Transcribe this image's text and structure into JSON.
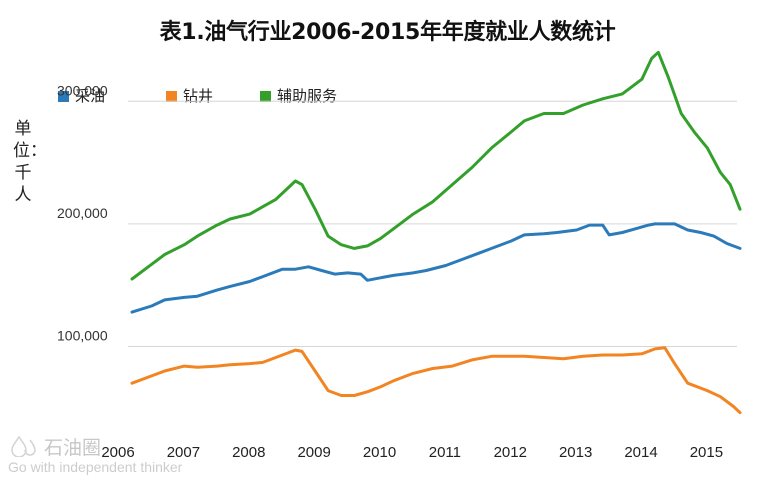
{
  "watermark": {
    "brand": "石油圈",
    "slogan": "Go with independent thinker"
  },
  "chart_data": {
    "type": "line",
    "title": "表1.油气行业2006-2015年年度就业人数统计",
    "ylabel": "单位：千人",
    "xlabel": "",
    "ylim": [
      40000,
      350000
    ],
    "yticks": [
      100000,
      200000,
      300000
    ],
    "ytick_labels": [
      "100,000",
      "200,000",
      "300,000"
    ],
    "xlim": [
      2006,
      2015.3
    ],
    "xticks": [
      2006,
      2007,
      2008,
      2009,
      2010,
      2011,
      2012,
      2013,
      2014,
      2015
    ],
    "xtick_labels": [
      "2006",
      "2007",
      "2008",
      "2009",
      "2010",
      "2011",
      "2012",
      "2013",
      "2014",
      "2015"
    ],
    "grid": "horizontal",
    "legend_position": "top-left",
    "series": [
      {
        "name": "采油",
        "color": "#2b7bba",
        "x": [
          2006.0,
          2006.3,
          2006.5,
          2006.8,
          2007.0,
          2007.3,
          2007.5,
          2007.8,
          2008.0,
          2008.3,
          2008.5,
          2008.7,
          2008.9,
          2009.1,
          2009.3,
          2009.5,
          2009.6,
          2009.8,
          2010.0,
          2010.3,
          2010.5,
          2010.8,
          2011.0,
          2011.3,
          2011.5,
          2011.8,
          2012.0,
          2012.3,
          2012.5,
          2012.8,
          2013.0,
          2013.2,
          2013.3,
          2013.5,
          2013.7,
          2013.9,
          2014.0,
          2014.3,
          2014.5,
          2014.7,
          2014.9,
          2015.1,
          2015.3
        ],
        "values": [
          128000,
          133000,
          138000,
          140000,
          141000,
          146000,
          149000,
          153000,
          157000,
          163000,
          163000,
          165000,
          162000,
          159000,
          160000,
          159000,
          154000,
          156000,
          158000,
          160000,
          162000,
          166000,
          170000,
          176000,
          180000,
          186000,
          191000,
          192000,
          193000,
          195000,
          199000,
          199000,
          191000,
          193000,
          196000,
          199000,
          200000,
          200000,
          195000,
          193000,
          190000,
          184000,
          180000
        ]
      },
      {
        "name": "钻井",
        "color": "#f28522",
        "x": [
          2006.0,
          2006.3,
          2006.5,
          2006.8,
          2007.0,
          2007.3,
          2007.5,
          2007.8,
          2008.0,
          2008.3,
          2008.5,
          2008.6,
          2008.8,
          2009.0,
          2009.2,
          2009.4,
          2009.6,
          2009.8,
          2010.0,
          2010.3,
          2010.6,
          2010.9,
          2011.2,
          2011.5,
          2011.8,
          2012.0,
          2012.3,
          2012.6,
          2012.9,
          2013.2,
          2013.5,
          2013.8,
          2014.0,
          2014.15,
          2014.3,
          2014.5,
          2014.8,
          2015.0,
          2015.2,
          2015.3
        ],
        "values": [
          70000,
          76000,
          80000,
          84000,
          83000,
          84000,
          85000,
          86000,
          87000,
          93000,
          97000,
          96000,
          80000,
          64000,
          60000,
          60000,
          63000,
          67000,
          72000,
          78000,
          82000,
          84000,
          89000,
          92000,
          92000,
          92000,
          91000,
          90000,
          92000,
          93000,
          93000,
          94000,
          98000,
          99000,
          86000,
          70000,
          64000,
          59000,
          51000,
          46000
        ]
      },
      {
        "name": "辅助服务",
        "color": "#33a02c",
        "x": [
          2006.0,
          2006.3,
          2006.5,
          2006.8,
          2007.0,
          2007.3,
          2007.5,
          2007.8,
          2008.0,
          2008.2,
          2008.4,
          2008.5,
          2008.6,
          2008.8,
          2009.0,
          2009.2,
          2009.4,
          2009.6,
          2009.8,
          2010.0,
          2010.3,
          2010.6,
          2010.9,
          2011.2,
          2011.5,
          2011.8,
          2012.0,
          2012.3,
          2012.6,
          2012.9,
          2013.2,
          2013.5,
          2013.8,
          2013.95,
          2014.05,
          2014.2,
          2014.4,
          2014.6,
          2014.8,
          2015.0,
          2015.15,
          2015.3
        ],
        "values": [
          155000,
          167000,
          175000,
          183000,
          190000,
          199000,
          204000,
          208000,
          214000,
          220000,
          230000,
          235000,
          232000,
          212000,
          190000,
          183000,
          180000,
          182000,
          188000,
          196000,
          208000,
          218000,
          232000,
          246000,
          262000,
          275000,
          284000,
          290000,
          290000,
          297000,
          302000,
          306000,
          318000,
          335000,
          340000,
          320000,
          290000,
          275000,
          262000,
          242000,
          232000,
          212000
        ]
      }
    ]
  }
}
